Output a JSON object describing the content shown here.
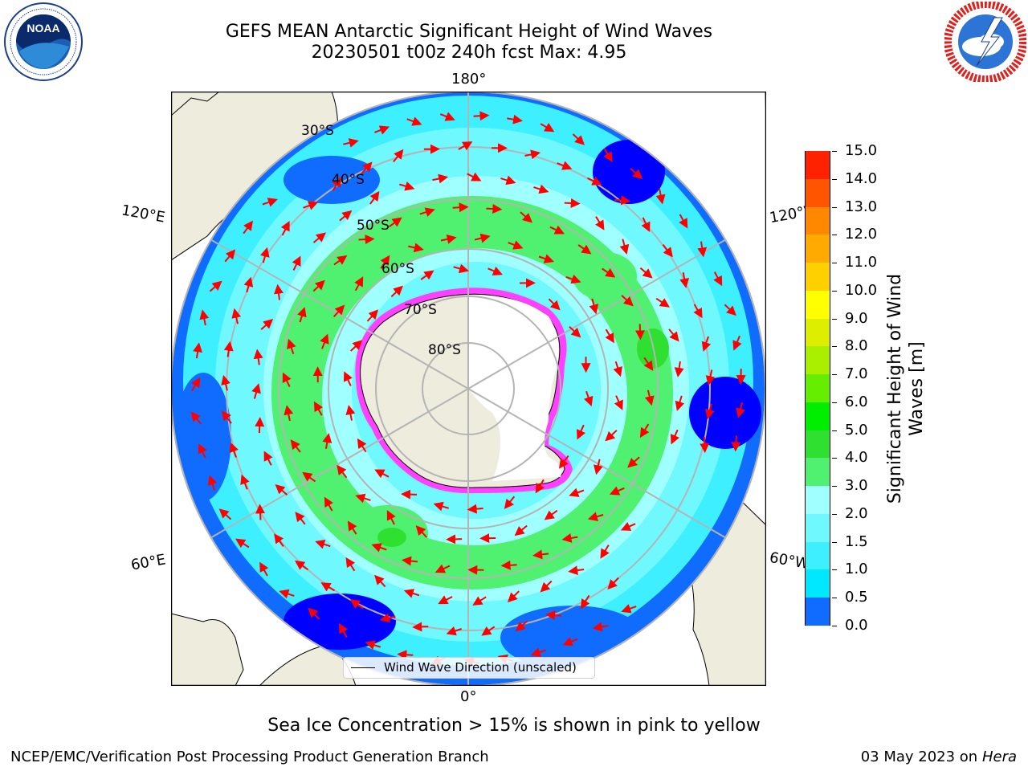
{
  "title_line1": "GEFS MEAN Antarctic Significant Height of Wind Waves",
  "title_line2": "20230501 t00z 240h fcst   Max: 4.95",
  "logos": {
    "left": {
      "icon": "noaa-logo",
      "text": "NOAA"
    },
    "right": {
      "icon": "national-weather-service-logo",
      "text": "NATIONAL WEATHER SERVICE"
    }
  },
  "map": {
    "projection": "south-polar-stereographic",
    "longitude_labels": {
      "top": "180°",
      "bottom": "0°",
      "left_upper": "120°E",
      "left_lower": "60°E",
      "right_upper": "120°W",
      "right_lower": "60°W"
    },
    "latitude_labels": [
      "30°S",
      "40°S",
      "50°S",
      "60°S",
      "70°S",
      "80°S"
    ],
    "colors": {
      "land": "#eeecdd",
      "ice_land": "#ffffff",
      "grid": "#b4b4b4",
      "arrow": "#ff0000",
      "sea_ice_edge": "#ff40ff"
    }
  },
  "legend": {
    "label": "Wind Wave Direction (unscaled)"
  },
  "colorbar": {
    "label": "Significant Height of Wind Waves [m]",
    "label_line1": "Significant Height of Wind",
    "label_line2": "Waves [m]",
    "ticks": [
      "0.0",
      "0.5",
      "1.0",
      "1.5",
      "2.0",
      "3.0",
      "4.0",
      "5.0",
      "6.0",
      "7.0",
      "8.0",
      "9.0",
      "10.0",
      "11.0",
      "12.0",
      "13.0",
      "14.0",
      "15.0"
    ],
    "colors": [
      "#0000ff",
      "#0f6cff",
      "#00e8ff",
      "#3ef0ff",
      "#70f8ff",
      "#a0ffff",
      "#50f070",
      "#30e030",
      "#00ee00",
      "#66ee00",
      "#aaee00",
      "#ddee00",
      "#ffff00",
      "#ffd000",
      "#ffaa00",
      "#ff8800",
      "#ff5500",
      "#ff2200",
      "#ff0000"
    ]
  },
  "footer": {
    "note": "Sea Ice Concentration > 15% is shown in pink to yellow",
    "credit_left": "NCEP/EMC/Verification Post Processing Product Generation Branch",
    "date": "03 May 2023 on",
    "machine": "Hera"
  }
}
